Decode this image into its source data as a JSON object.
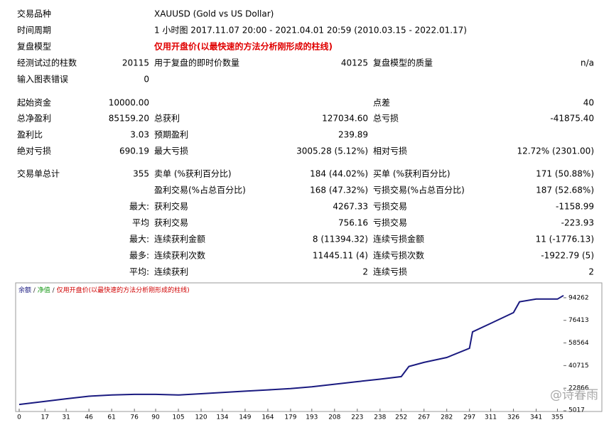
{
  "report": {
    "rows": [
      {
        "label": "交易品种",
        "info": "XAUUSD (Gold vs US Dollar)"
      },
      {
        "label": "时间周期",
        "info": "1 小时图 2017.11.07 20:00 - 2021.04.01 20:59 (2010.03.15 - 2022.01.17)"
      },
      {
        "label": "复盘模型",
        "info_red": "仅用开盘价(以最快速的方法分析刚形成的柱线)"
      },
      {
        "label": "经测试过的柱数",
        "value": "20115",
        "label2": "用于复盘的即时价数量",
        "value2": "40125",
        "label3": "复盘模型的质量",
        "value3": "n/a"
      },
      {
        "label": "输入图表错误",
        "value": "0"
      },
      {
        "label": "起始资金",
        "value": "10000.00",
        "label3": "点差",
        "value3": "40"
      },
      {
        "label": "总净盈利",
        "value": "85159.20",
        "label2": "总获利",
        "value2": "127034.60",
        "label3": "总亏损",
        "value3": "-41875.40"
      },
      {
        "label": "盈利比",
        "value": "3.03",
        "label2": "预期盈利",
        "value2": "239.89"
      },
      {
        "label": "绝对亏损",
        "value": "690.19",
        "label2": "最大亏损",
        "value2": "3005.28 (5.12%)",
        "label3": "相对亏损",
        "value3": "12.72% (2301.00)"
      },
      {
        "label": "交易单总计",
        "value": "355",
        "label2": "卖单 (%获利百分比)",
        "value2": "184 (44.02%)",
        "label3": "买单 (%获利百分比)",
        "value3": "171 (50.88%)"
      },
      {
        "label2": "盈利交易(%占总百分比)",
        "value2": "168 (47.32%)",
        "label3": "亏损交易(%占总百分比)",
        "value3": "187 (52.68%)"
      },
      {
        "value": "最大:",
        "label2": "获利交易",
        "value2": "4267.33",
        "label3": "亏损交易",
        "value3": "-1158.99"
      },
      {
        "value": "平均",
        "label2": "获利交易",
        "value2": "756.16",
        "label3": "亏损交易",
        "value3": "-223.93"
      },
      {
        "value": "最大:",
        "label2": "连续获利金额",
        "value2": "8 (11394.32)",
        "label3": "连续亏损金额",
        "value3": "11 (-1776.13)"
      },
      {
        "value": "最多:",
        "label2": "连续获利次数",
        "value2": "11445.11 (4)",
        "label3": "连续亏损次数",
        "value3": "-1922.79 (5)"
      },
      {
        "value": "平均:",
        "label2": "连续获利",
        "value2": "2",
        "label3": "连续亏损",
        "value3": "2"
      }
    ]
  },
  "chart_data": {
    "type": "line",
    "annotations": [
      "净值",
      "仅用开盘价(以最快速的方法分析刚形成的柱线)"
    ],
    "watermark": "@诗春雨",
    "x": [
      0,
      17,
      31,
      46,
      61,
      76,
      90,
      105,
      120,
      134,
      149,
      164,
      179,
      193,
      208,
      223,
      238,
      252,
      257,
      267,
      282,
      297,
      299,
      311,
      326,
      330,
      341,
      355,
      359
    ],
    "series": [
      {
        "name": "余额",
        "color": "#1a1a80",
        "values": [
          10000,
          12500,
          14500,
          16500,
          17500,
          18000,
          18000,
          17500,
          18500,
          19500,
          20500,
          21500,
          22500,
          24000,
          26000,
          28000,
          30000,
          32000,
          40000,
          43200,
          47100,
          54400,
          67300,
          74000,
          82500,
          91000,
          93200,
          93200,
          96000
        ]
      }
    ],
    "xlim": [
      0,
      359
    ],
    "ylim": [
      5017,
      103200
    ],
    "xticks": [
      0,
      17,
      31,
      46,
      61,
      76,
      90,
      105,
      120,
      134,
      149,
      164,
      179,
      193,
      208,
      223,
      238,
      252,
      267,
      282,
      297,
      311,
      326,
      341,
      355
    ],
    "yticks": [
      5017,
      22866,
      40715,
      58564,
      76413,
      94262
    ]
  }
}
